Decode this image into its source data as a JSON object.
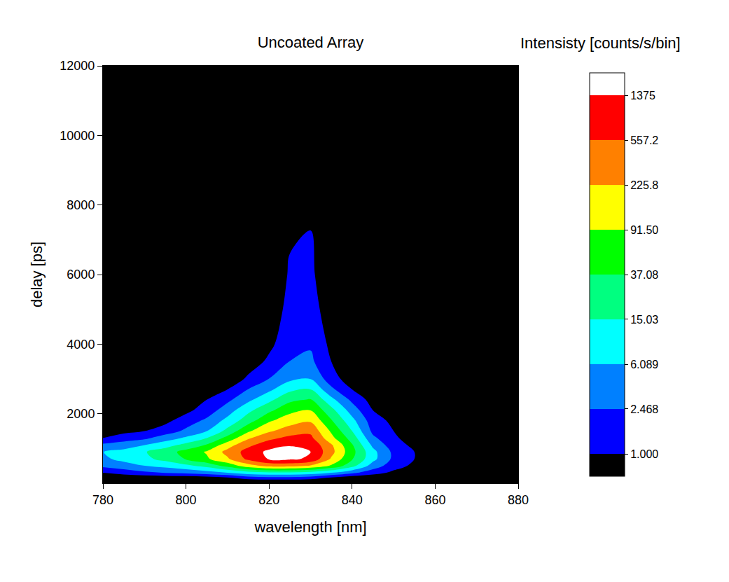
{
  "chart_data": {
    "type": "contour",
    "title": "Uncoated Array",
    "x_label": "wavelength [nm]",
    "y_label": "delay [ps]",
    "x": [
      780,
      785,
      790,
      795,
      800,
      805,
      810,
      815,
      820,
      825,
      830,
      835,
      840,
      845,
      850,
      855,
      860,
      865,
      870,
      875,
      880
    ],
    "y": [
      100,
      300,
      500,
      700,
      900,
      1100,
      1300,
      1500,
      1800,
      2100,
      2400,
      2700,
      3000,
      3500,
      4000,
      5000,
      6000,
      8000,
      10000,
      12000
    ],
    "cells": [
      [
        0.3,
        0.3,
        0.3,
        0.3,
        0.3,
        0.3,
        0.4,
        0.8,
        0.9,
        0.9,
        0.8,
        0.4,
        0.3,
        0.3,
        0.3,
        0.3,
        0.3,
        0.3,
        0.3,
        0.3,
        0.3
      ],
      [
        1,
        1.5,
        2,
        2.5,
        3,
        4,
        6,
        10,
        12,
        12,
        10,
        6,
        3,
        1.5,
        0.8,
        0.4,
        0.4,
        0.4,
        0.4,
        0.4,
        0.4
      ],
      [
        3,
        4,
        6,
        8,
        12,
        20,
        50,
        150,
        300,
        300,
        200,
        80,
        20,
        4,
        1.5,
        0.8,
        0.5,
        0.5,
        0.5,
        0.5,
        0.5
      ],
      [
        5,
        8,
        12,
        20,
        40,
        80,
        200,
        700,
        1500,
        1600,
        1200,
        200,
        40,
        8,
        2,
        1,
        0.6,
        0.4,
        0.4,
        0.4,
        0.4
      ],
      [
        6,
        8,
        14,
        25,
        50,
        100,
        300,
        800,
        1700,
        1800,
        1400,
        300,
        50,
        8,
        2,
        1,
        0.6,
        0.4,
        0.4,
        0.4,
        0.4
      ],
      [
        3,
        4,
        6,
        10,
        20,
        40,
        150,
        450,
        900,
        1300,
        1100,
        250,
        40,
        5,
        1.5,
        0.8,
        0.5,
        0.4,
        0.4,
        0.4,
        0.4
      ],
      [
        1,
        1.5,
        2,
        4,
        7,
        15,
        50,
        200,
        450,
        700,
        700,
        120,
        25,
        3,
        1.2,
        0.6,
        0.4,
        0.3,
        0.3,
        0.3,
        0.3
      ],
      [
        0.6,
        0.8,
        1,
        1.5,
        3,
        6,
        20,
        80,
        200,
        350,
        450,
        80,
        15,
        2,
        1,
        0.5,
        0.3,
        0.3,
        0.3,
        0.3,
        0.3
      ],
      [
        0.4,
        0.5,
        0.6,
        0.8,
        1.5,
        3,
        8,
        25,
        80,
        150,
        200,
        40,
        8,
        1.5,
        0.8,
        0.4,
        0.3,
        0.3,
        0.3,
        0.3,
        0.3
      ],
      [
        0.3,
        0.3,
        0.4,
        0.4,
        0.8,
        1.5,
        4,
        12,
        30,
        70,
        90,
        20,
        4,
        1,
        0.5,
        0.3,
        0.3,
        0.3,
        0.3,
        0.3,
        0.3
      ],
      [
        0.3,
        0.3,
        0.3,
        0.3,
        0.5,
        1,
        2,
        5,
        12,
        30,
        40,
        8,
        2,
        0.7,
        0.4,
        0.3,
        0.3,
        0.3,
        0.3,
        0.3,
        0.3
      ],
      [
        0.3,
        0.3,
        0.3,
        0.3,
        0.3,
        0.6,
        1,
        2.5,
        5,
        12,
        15,
        3,
        1,
        0.5,
        0.3,
        0.3,
        0.3,
        0.3,
        0.3,
        0.3,
        0.3
      ],
      [
        0.3,
        0.3,
        0.3,
        0.3,
        0.3,
        0.3,
        0.5,
        1.2,
        2.5,
        5,
        6,
        1.5,
        0.6,
        0.4,
        0.3,
        0.3,
        0.3,
        0.3,
        0.3,
        0.3,
        0.3
      ],
      [
        0.3,
        0.3,
        0.3,
        0.3,
        0.3,
        0.3,
        0.3,
        0.6,
        1.2,
        2.5,
        3,
        1,
        0.5,
        0.3,
        0.3,
        0.3,
        0.3,
        0.3,
        0.3,
        0.3,
        0.3
      ],
      [
        0.3,
        0.3,
        0.3,
        0.3,
        0.3,
        0.3,
        0.3,
        0.3,
        0.8,
        1.8,
        2.2,
        0.8,
        0.4,
        0.3,
        0.3,
        0.3,
        0.3,
        0.3,
        0.3,
        0.3,
        0.3
      ],
      [
        0.3,
        0.3,
        0.3,
        0.3,
        0.3,
        0.3,
        0.3,
        0.3,
        0.6,
        1.3,
        1.5,
        0.6,
        0.3,
        0.3,
        0.3,
        0.3,
        0.3,
        0.3,
        0.3,
        0.3,
        0.3
      ],
      [
        0.3,
        0.3,
        0.3,
        0.3,
        0.3,
        0.3,
        0.3,
        0.3,
        0.5,
        1.1,
        1.2,
        0.5,
        0.3,
        0.3,
        0.3,
        0.3,
        0.3,
        0.3,
        0.3,
        0.3,
        0.3
      ],
      [
        0.3,
        0.3,
        0.3,
        0.3,
        0.3,
        0.3,
        0.3,
        0.3,
        0.4,
        0.8,
        0.9,
        0.4,
        0.3,
        0.3,
        0.3,
        0.3,
        0.3,
        0.3,
        0.3,
        0.3,
        0.3
      ],
      [
        0.3,
        0.3,
        0.3,
        0.3,
        0.3,
        0.3,
        0.3,
        0.3,
        0.3,
        0.6,
        0.7,
        0.3,
        0.3,
        0.3,
        0.3,
        0.3,
        0.3,
        0.3,
        0.3,
        0.3,
        0.3
      ],
      [
        0.3,
        0.3,
        0.3,
        0.3,
        0.3,
        0.3,
        0.3,
        0.3,
        0.3,
        0.5,
        0.6,
        0.3,
        0.3,
        0.3,
        0.3,
        0.3,
        0.3,
        0.3,
        0.3,
        0.3,
        0.3
      ]
    ],
    "xlim": [
      780,
      880
    ],
    "xticks": [
      780,
      800,
      820,
      840,
      860,
      880
    ],
    "ylim": [
      0,
      12000
    ],
    "yticks": [
      2000,
      4000,
      6000,
      8000,
      10000,
      12000
    ],
    "colorbar": {
      "title": "Intensisty [counts/s/bin]",
      "log": true,
      "ticks": [
        {
          "value": 1,
          "label": "1.000"
        },
        2.468,
        6.089,
        15.03,
        37.08,
        {
          "value": 91.5,
          "label": "91.50"
        },
        225.8,
        557.2,
        1375
      ],
      "colors": [
        "#000000",
        "#0000ff",
        "#0080ff",
        "#00ffff",
        "#00ff80",
        "#00ff00",
        "#ffff00",
        "#ff8000",
        "#ff0000",
        "#ffffff"
      ]
    }
  }
}
